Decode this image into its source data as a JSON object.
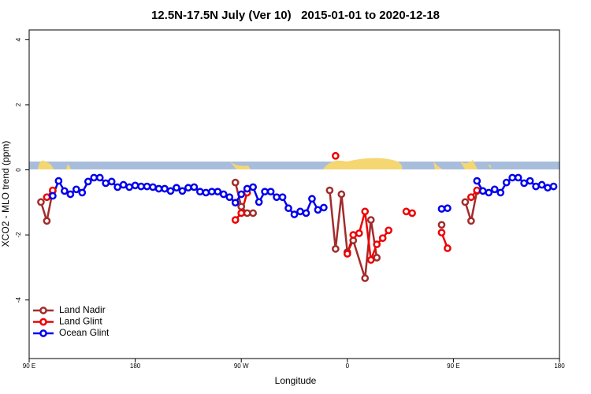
{
  "chart_data": {
    "type": "line",
    "title": "12.5N-17.5N July (Ver 10)   2015-01-01 to 2020-12-18",
    "xlabel": "Longitude",
    "ylabel": "XCO2 - MLO trend (ppm)",
    "xlim": [
      90,
      540
    ],
    "xticks": [
      {
        "value": 90,
        "label": "90 E"
      },
      180,
      {
        "value": 270,
        "label": "90 W"
      },
      {
        "value": 360,
        "label": "0"
      },
      {
        "value": 450,
        "label": "90 E"
      },
      {
        "value": 540,
        "label": "180"
      }
    ],
    "ylim": [
      -5.8,
      4.3
    ],
    "yticks": [
      -4,
      -2,
      0,
      2,
      4
    ],
    "legend": "lower left",
    "series": [
      {
        "name": "Land Nadir",
        "color": "#a32c2c",
        "x": [
          100,
          105,
          110,
          190,
          265,
          270,
          275,
          280,
          310,
          345,
          350,
          355,
          360,
          365,
          375,
          380,
          385,
          410,
          440,
          450,
          460,
          465,
          470
        ],
        "values": [
          -0.99,
          -1.57,
          -0.65,
          null,
          -0.39,
          -1.13,
          -1.33,
          -1.33,
          null,
          -0.63,
          -2.43,
          -0.75,
          -2.53,
          -2.17,
          -3.33,
          -1.54,
          -2.7,
          null,
          -1.69,
          null,
          -0.99,
          -1.57,
          -0.65
        ]
      },
      {
        "name": "Land Glint",
        "color": "#ee0000",
        "x": [
          105,
          110,
          190,
          265,
          270,
          275,
          310,
          350,
          355,
          360,
          365,
          370,
          375,
          380,
          385,
          390,
          395,
          400,
          410,
          415,
          425,
          440,
          445,
          455,
          465,
          470
        ],
        "values": [
          -0.84,
          -0.63,
          null,
          -1.54,
          -1.33,
          -0.7,
          null,
          0.43,
          null,
          -2.58,
          -2.0,
          -1.95,
          -1.28,
          -2.77,
          -2.29,
          -2.1,
          -1.86,
          null,
          -1.28,
          -1.33,
          null,
          -1.93,
          -2.41,
          null,
          -0.84,
          -0.63
        ]
      },
      {
        "name": "Ocean Glint",
        "color": "#0000ee",
        "x": [
          110,
          115,
          120,
          125,
          130,
          135,
          140,
          145,
          150,
          155,
          160,
          165,
          170,
          175,
          180,
          185,
          190,
          195,
          200,
          205,
          210,
          215,
          220,
          225,
          230,
          235,
          240,
          245,
          250,
          255,
          260,
          265,
          270,
          275,
          280,
          285,
          290,
          295,
          300,
          305,
          310,
          315,
          320,
          325,
          330,
          335,
          340,
          390,
          440,
          445,
          455,
          470,
          475,
          480,
          485,
          490,
          495,
          500,
          505,
          510,
          515,
          520,
          525,
          530,
          535
        ],
        "values": [
          -0.8,
          -0.34,
          -0.65,
          -0.75,
          -0.6,
          -0.7,
          -0.36,
          -0.24,
          -0.24,
          -0.41,
          -0.36,
          -0.53,
          -0.46,
          -0.53,
          -0.48,
          -0.51,
          -0.51,
          -0.53,
          -0.58,
          -0.58,
          -0.65,
          -0.55,
          -0.65,
          -0.55,
          -0.53,
          -0.67,
          -0.7,
          -0.67,
          -0.67,
          -0.75,
          -0.84,
          -1.01,
          -0.75,
          -0.58,
          -0.53,
          -0.99,
          -0.67,
          -0.67,
          -0.84,
          -0.84,
          -1.18,
          -1.37,
          -1.28,
          -1.33,
          -0.89,
          -1.23,
          -1.16,
          null,
          -1.2,
          -1.18,
          null,
          -0.34,
          -0.65,
          -0.7,
          -0.6,
          -0.7,
          -0.39,
          -0.24,
          -0.24,
          -0.41,
          -0.34,
          -0.51,
          -0.46,
          -0.55,
          -0.51
        ]
      }
    ]
  }
}
